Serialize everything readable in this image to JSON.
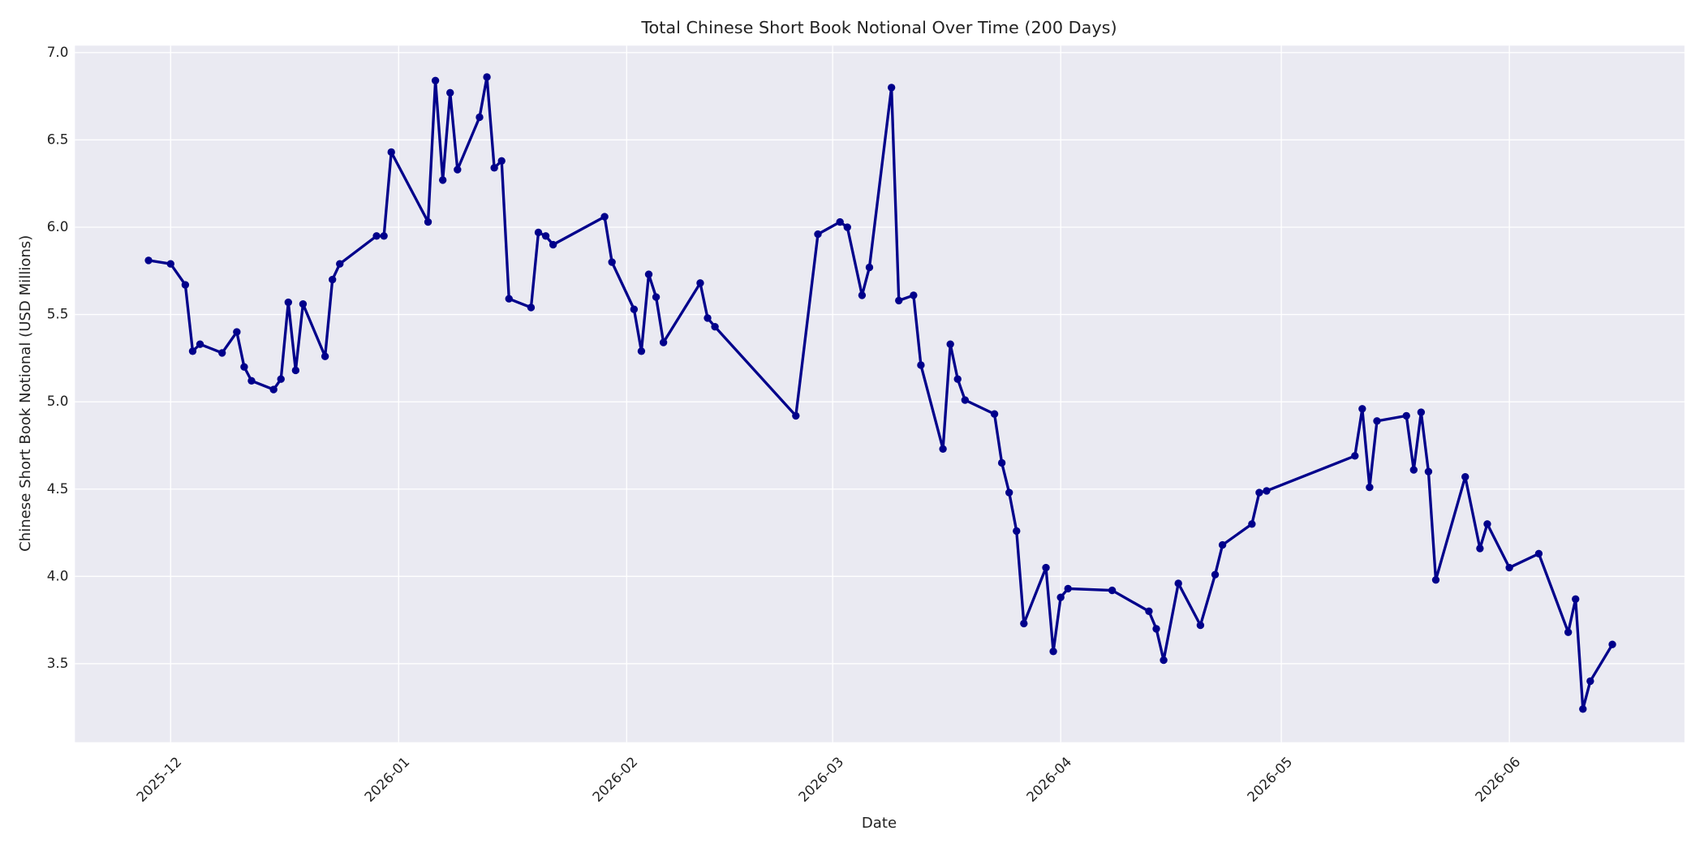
{
  "chart_data": {
    "type": "line",
    "title": "Total Chinese Short Book Notional Over Time (200 Days)",
    "x_label": "Date",
    "y_label": "Chinese Short Book Notional (USD Millions)",
    "x": [
      -3,
      0,
      2,
      3,
      4,
      7,
      9,
      10,
      11,
      14,
      15,
      16,
      17,
      18,
      21,
      22,
      23,
      28,
      29,
      30,
      35,
      36,
      37,
      38,
      39,
      42,
      43,
      44,
      45,
      46,
      49,
      50,
      51,
      52,
      59,
      60,
      63,
      64,
      65,
      66,
      67,
      72,
      73,
      74,
      85,
      88,
      91,
      92,
      94,
      95,
      98,
      99,
      101,
      102,
      105,
      106,
      107,
      108,
      112,
      113,
      114,
      115,
      116,
      119,
      120,
      121,
      122,
      128,
      133,
      134,
      135,
      137,
      140,
      142,
      143,
      147,
      148,
      149,
      161,
      162,
      163,
      164,
      168,
      169,
      170,
      171,
      172,
      176,
      178,
      179,
      182,
      186,
      190,
      191,
      192,
      193,
      196
    ],
    "values": [
      5.81,
      5.79,
      5.67,
      5.29,
      5.33,
      5.28,
      5.4,
      5.2,
      5.12,
      5.07,
      5.13,
      5.57,
      5.18,
      5.56,
      5.26,
      5.7,
      5.79,
      5.95,
      5.95,
      6.43,
      6.03,
      6.84,
      6.27,
      6.77,
      6.33,
      6.63,
      6.86,
      6.34,
      6.38,
      5.59,
      5.54,
      5.97,
      5.95,
      5.9,
      6.06,
      5.8,
      5.53,
      5.29,
      5.73,
      5.6,
      5.34,
      5.68,
      5.48,
      5.43,
      4.92,
      5.96,
      6.03,
      6.0,
      5.61,
      5.77,
      6.8,
      5.58,
      5.61,
      5.21,
      4.73,
      5.33,
      5.13,
      5.01,
      4.93,
      4.65,
      4.48,
      4.26,
      3.73,
      4.05,
      3.57,
      3.88,
      3.93,
      3.92,
      3.8,
      3.7,
      3.52,
      3.96,
      3.72,
      4.01,
      4.18,
      4.3,
      4.48,
      4.49,
      4.69,
      4.96,
      4.51,
      4.89,
      4.92,
      4.61,
      4.94,
      4.6,
      3.98,
      4.57,
      4.16,
      4.3,
      4.05,
      4.13,
      3.68,
      3.87,
      3.24,
      3.4,
      3.61
    ],
    "color": "#00008b",
    "xlim": [
      -13,
      205.8
    ],
    "xticks": [
      {
        "value": 0,
        "label": "2025-12"
      },
      {
        "value": 31,
        "label": "2026-01"
      },
      {
        "value": 62,
        "label": "2026-02"
      },
      {
        "value": 90,
        "label": "2026-03"
      },
      {
        "value": 121,
        "label": "2026-04"
      },
      {
        "value": 151,
        "label": "2026-05"
      },
      {
        "value": 182,
        "label": "2026-06"
      }
    ],
    "ylim": [
      3.05,
      7.04
    ],
    "yticks": [
      3.5,
      {
        "value": 4,
        "label": "4.0"
      },
      4.5,
      {
        "value": 5,
        "label": "5.0"
      },
      5.5,
      {
        "value": 6,
        "label": "6.0"
      },
      6.5,
      {
        "value": 7,
        "label": "7.0"
      }
    ],
    "grid": true
  }
}
